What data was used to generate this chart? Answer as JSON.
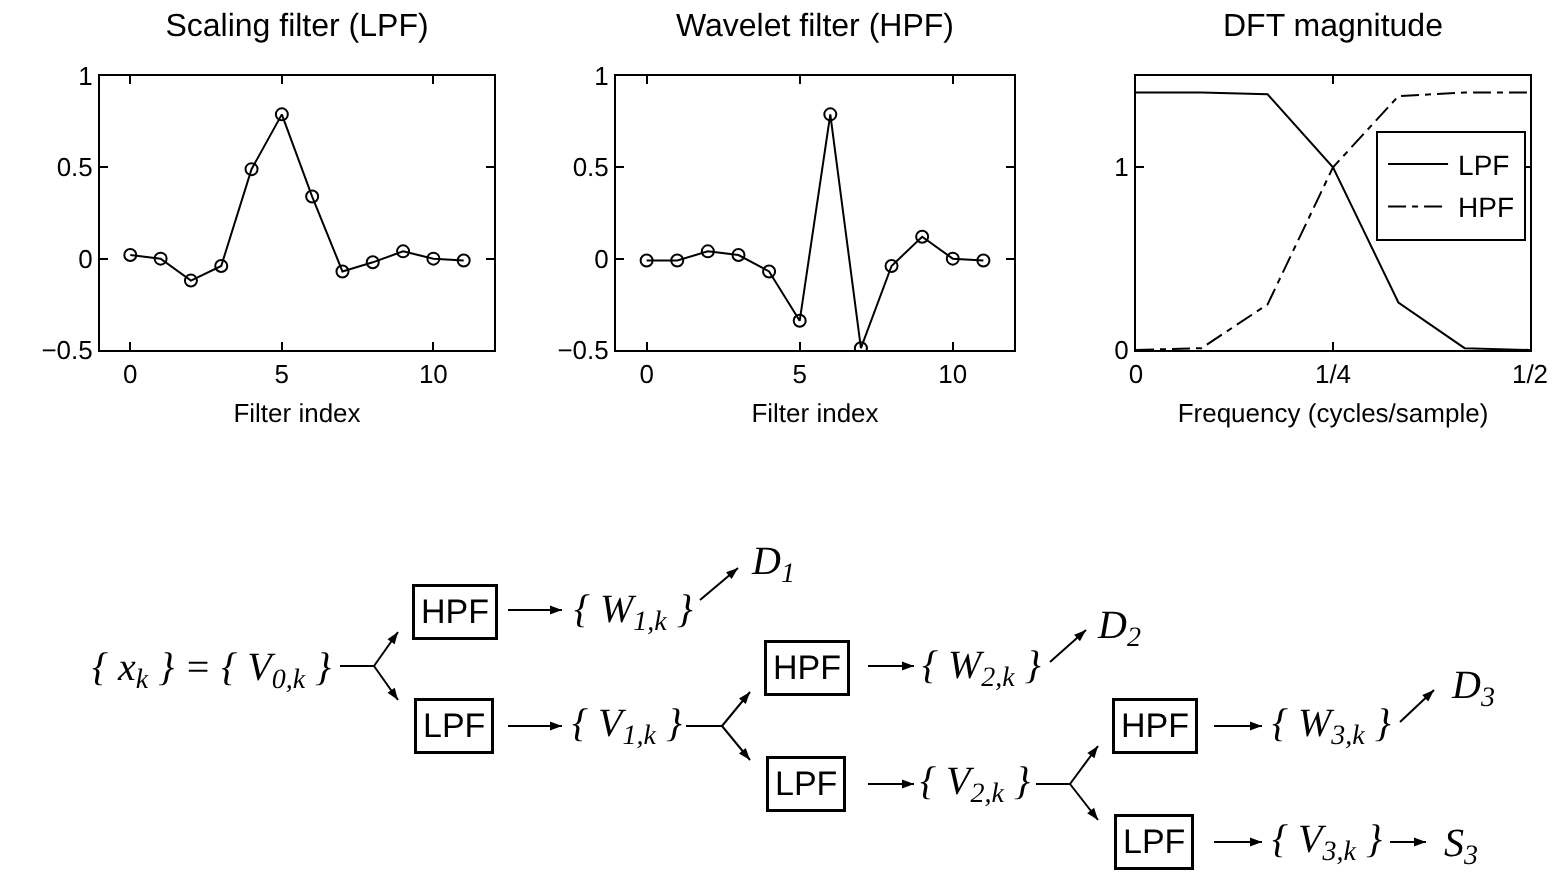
{
  "chart_data": [
    {
      "type": "line",
      "title": "Scaling filter (LPF)",
      "xlabel": "Filter index",
      "x": [
        0,
        1,
        2,
        3,
        4,
        5,
        6,
        7,
        8,
        9,
        10,
        11
      ],
      "values": [
        0.02,
        0,
        -0.12,
        -0.04,
        0.49,
        0.79,
        0.34,
        -0.07,
        -0.02,
        0.04,
        0,
        -0.01
      ],
      "color": "#000000",
      "marker": "circle",
      "xlim": [
        -1,
        12
      ],
      "xticks": [
        0,
        5,
        10
      ],
      "ylim": [
        -0.5,
        1
      ],
      "yticks": [
        -0.5,
        0,
        0.5,
        1
      ],
      "grid": false,
      "legend": false
    },
    {
      "type": "line",
      "title": "Wavelet filter (HPF)",
      "xlabel": "Filter index",
      "x": [
        0,
        1,
        2,
        3,
        4,
        5,
        6,
        7,
        8,
        9,
        10,
        11
      ],
      "values": [
        -0.01,
        -0.01,
        0.04,
        0.02,
        -0.07,
        -0.34,
        0.79,
        -0.49,
        -0.04,
        0.12,
        0,
        -0.01
      ],
      "color": "#000000",
      "marker": "circle",
      "xlim": [
        -1,
        12
      ],
      "xticks": [
        0,
        5,
        10
      ],
      "ylim": [
        -0.5,
        1
      ],
      "yticks": [
        -0.5,
        0,
        0.5,
        1
      ],
      "grid": false,
      "legend": false
    },
    {
      "type": "line",
      "title": "DFT magnitude",
      "xlabel": "Frequency (cycles/sample)",
      "x": [
        0,
        0.083,
        0.167,
        0.25,
        0.333,
        0.417,
        0.5
      ],
      "series": [
        {
          "name": "LPF",
          "color": "#000000",
          "line_style": "solid",
          "values": [
            1.41,
            1.41,
            1.4,
            1.0,
            0.26,
            0.01,
            0
          ]
        },
        {
          "name": "HPF",
          "color": "#000000",
          "line_style": "dashed",
          "values": [
            0,
            0.01,
            0.25,
            1.0,
            1.39,
            1.41,
            1.41
          ]
        }
      ],
      "marker": "none",
      "xlim": [
        0,
        0.5
      ],
      "xticks": [
        0,
        {
          "value": 0.25,
          "label": "1/4"
        },
        {
          "value": 0.5,
          "label": "1/2"
        }
      ],
      "ylim": [
        0,
        1.5
      ],
      "yticks": [
        0,
        1
      ],
      "grid": false,
      "legend": "top right"
    },
    {
      "type": "other",
      "annotations": [
        "{ x$_{k}$ } = { V$_{0,k}$ }",
        "HPF",
        "LPF",
        "{ W$_{1,k}$ }",
        "D$_{1}$",
        "{ V$_{1,k}$ }",
        "HPF",
        "LPF",
        "{ W$_{2,k}$ }",
        "D$_{2}$",
        "{ V$_{2,k}$ }",
        "HPF",
        "LPF",
        "{ W$_{3,k}$ }",
        "D$_{3}$",
        "{ V$_{3,k}$ }",
        "S$_{3}$"
      ]
    }
  ]
}
